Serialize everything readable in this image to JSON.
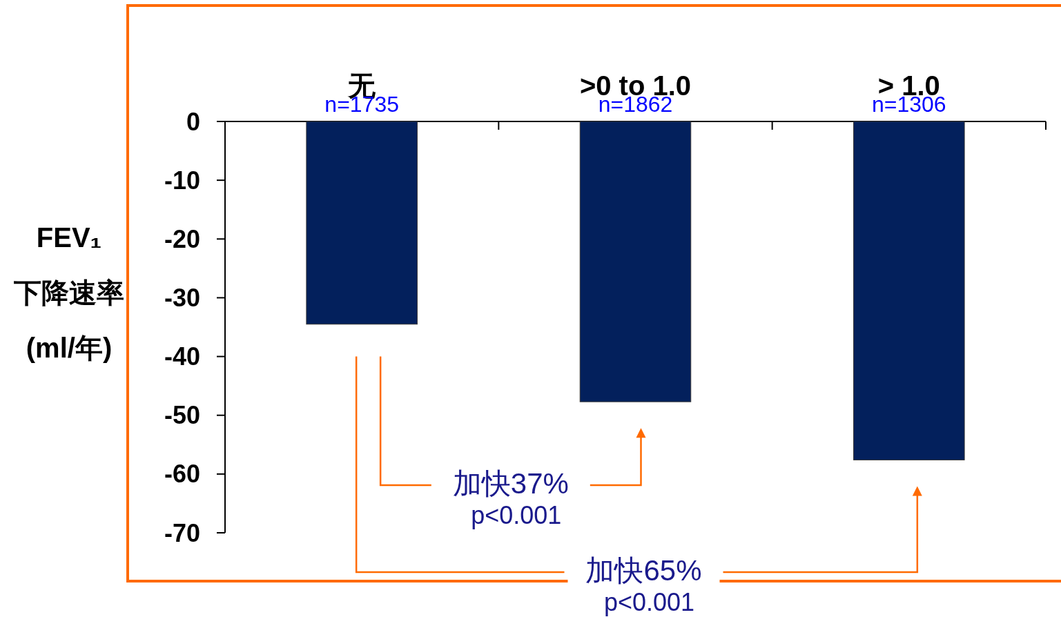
{
  "chart_data": {
    "type": "bar",
    "categories": [
      "无",
      ">0 to 1.0",
      "> 1.0"
    ],
    "values": [
      -34.5,
      -47.7,
      -57.6
    ],
    "color": "#03205c",
    "ylabel": "FEV₁\n下降速率\n(ml/年)",
    "ylim": [
      -70,
      0
    ],
    "yticks": [
      0,
      -10,
      -20,
      -30,
      -40,
      -50,
      -60,
      -70
    ],
    "annotations": [
      "n=1735",
      "n=1862",
      "n=1306",
      "加快37%\np<0.001",
      "加快65%\np<0.001"
    ]
  }
}
